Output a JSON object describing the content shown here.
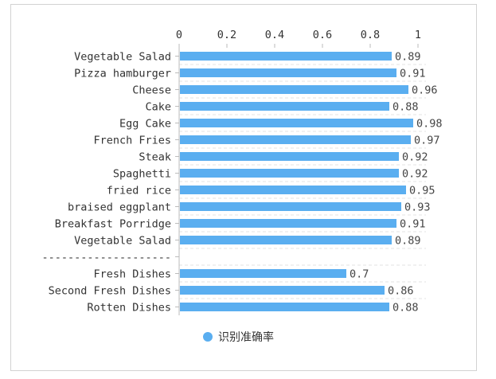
{
  "chart_data": {
    "type": "bar",
    "orientation": "horizontal",
    "categories": [
      "Vegetable Salad",
      "Pizza hamburger",
      "Cheese",
      "Cake",
      "Egg Cake",
      "French Fries",
      "Steak",
      "Spaghetti",
      "fried rice",
      "braised eggplant",
      "Breakfast Porridge",
      "Vegetable Salad",
      "--------------------",
      "Fresh Dishes",
      "Second Fresh Dishes",
      "Rotten Dishes"
    ],
    "series": [
      {
        "name": "识别准确率",
        "values": [
          0.89,
          0.91,
          0.96,
          0.88,
          0.98,
          0.97,
          0.92,
          0.92,
          0.95,
          0.93,
          0.91,
          0.89,
          null,
          0.7,
          0.86,
          0.88
        ],
        "labels": [
          "0.89",
          "0.91",
          "0.96",
          "0.88",
          "0.98",
          "0.97",
          "0.92",
          "0.92",
          "0.95",
          "0.93",
          "0.91",
          "0.89",
          "",
          "0.7",
          "0.86",
          "0.88"
        ]
      }
    ],
    "xlim": [
      0,
      1
    ],
    "xticks": [
      0,
      0.2,
      0.4,
      0.6,
      0.8,
      1
    ],
    "xtick_labels": [
      "0",
      "0.2",
      "0.4",
      "0.6",
      "0.8",
      "1"
    ],
    "x_axis_position": "top",
    "grid": true,
    "legend": "bottom",
    "colors": {
      "bar": "#5aaef0",
      "grid": "#e3e3e3",
      "axis": "#bbbbbb"
    }
  }
}
